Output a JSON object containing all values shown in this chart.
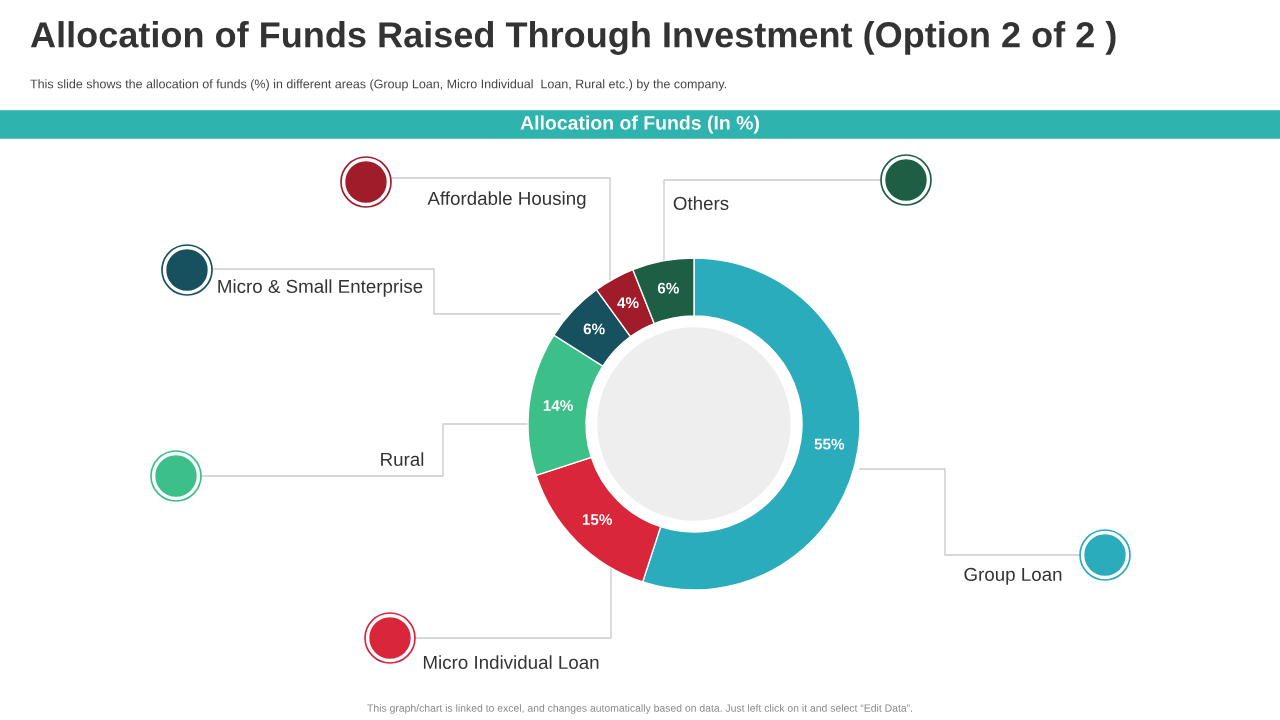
{
  "chart_data": {
    "type": "donut",
    "title": "Allocation of Funds Raised Through Investment (Option 2 of 2 )",
    "subtitle": "This slide shows the allocation of funds (%) in different areas (Group Loan, Micro Individual  Loan, Rural etc.) by the company.",
    "annotations": [
      "Allocation of Funds (In %)",
      "This graph/chart is linked to excel, and changes automatically based on data. Just left click on it and select “Edit Data”."
    ],
    "categories": [
      "Group Loan",
      "Micro Individual Loan",
      "Rural",
      "Micro & Small Enterprise",
      "Affordable Housing",
      "Others"
    ],
    "values": [
      55,
      15,
      14,
      6,
      4,
      6
    ],
    "value_labels": [
      "55%",
      "15%",
      "14%",
      "6%",
      "4%",
      "6%"
    ],
    "colors": [
      "#2aacbd",
      "#d9263a",
      "#3dbf8a",
      "#17505e",
      "#a01c2a",
      "#1d5e45"
    ]
  }
}
